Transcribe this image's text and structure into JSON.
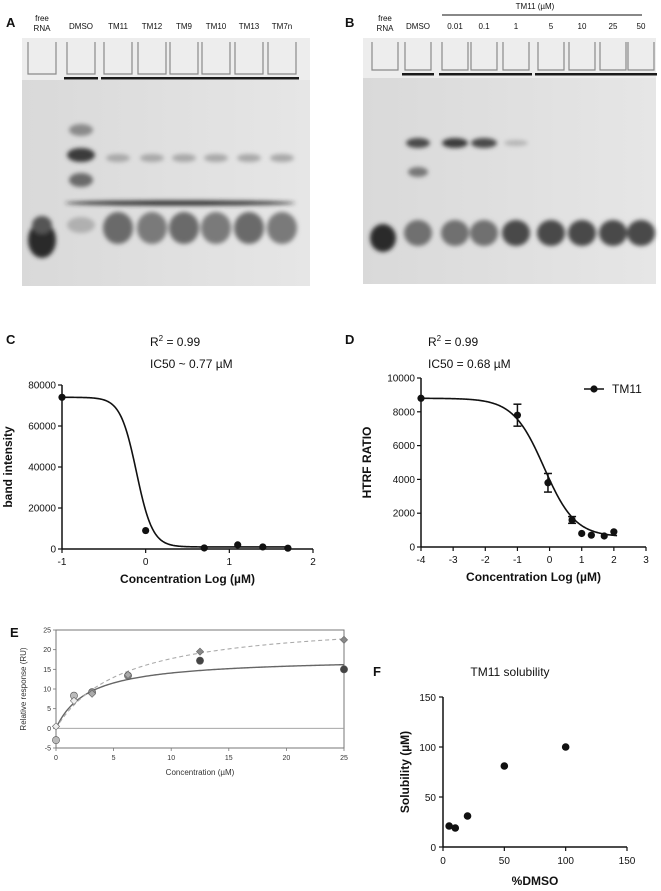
{
  "panels": {
    "A": {
      "letter": "A",
      "lanes": [
        "free RNA",
        "DMSO",
        "TM11",
        "TM12",
        "TM9",
        "TM10",
        "TM13",
        "TM7n"
      ]
    },
    "B": {
      "letter": "B",
      "header": "TM11 (µM)",
      "lanes": [
        "free RNA",
        "DMSO",
        "0.01",
        "0.1",
        "1",
        "5",
        "10",
        "25",
        "50"
      ]
    }
  },
  "chart_data": [
    {
      "panel": "C",
      "type": "scatter",
      "annotation_r2_prefix": "R",
      "annotation_r2_sup": "2",
      "annotation_r2_value": " = 0.99",
      "annotation_ic50": "IC50 ~ 0.77  µM",
      "xlabel": "Concentration Log (µM)",
      "ylabel": "band intensity",
      "xlim": [
        -1,
        2
      ],
      "ylim": [
        0,
        80000
      ],
      "xticks": [
        "-1",
        "0",
        "1",
        "2"
      ],
      "yticks": [
        "0",
        "20000",
        "40000",
        "60000",
        "80000"
      ],
      "points": [
        {
          "x": -1,
          "y": 74000
        },
        {
          "x": 0,
          "y": 9000
        },
        {
          "x": 0.7,
          "y": 500
        },
        {
          "x": 1.1,
          "y": 2000
        },
        {
          "x": 1.4,
          "y": 1000
        },
        {
          "x": 1.7,
          "y": 400
        }
      ],
      "fit": {
        "top": 74000,
        "bottom": 1000,
        "log_ic50": -0.11,
        "hill": 4.5
      }
    },
    {
      "panel": "D",
      "type": "scatter",
      "annotation_r2_prefix": "R",
      "annotation_r2_sup": "2",
      "annotation_r2_value": " = 0.99",
      "annotation_ic50": "IC50 = 0.68  µM",
      "xlabel": "Concentration Log (µM)",
      "ylabel": "HTRF RATIO",
      "legend": "TM11",
      "xlim": [
        -4,
        3
      ],
      "ylim": [
        0,
        10000
      ],
      "xticks": [
        "-4",
        "-3",
        "-2",
        "-1",
        "0",
        "1",
        "2",
        "3"
      ],
      "yticks": [
        "0",
        "2000",
        "4000",
        "6000",
        "8000",
        "10000"
      ],
      "points": [
        {
          "x": -4,
          "y": 8800,
          "err": 0
        },
        {
          "x": -1,
          "y": 7800,
          "err": 650
        },
        {
          "x": -0.05,
          "y": 3800,
          "err": 550
        },
        {
          "x": 0.7,
          "y": 1600,
          "err": 200
        },
        {
          "x": 1.0,
          "y": 800,
          "err": 0
        },
        {
          "x": 1.3,
          "y": 700,
          "err": 0
        },
        {
          "x": 1.7,
          "y": 650,
          "err": 0
        },
        {
          "x": 2.0,
          "y": 900,
          "err": 0
        }
      ],
      "fit": {
        "top": 8800,
        "bottom": 600,
        "log_ic50": -0.17,
        "hill": 0.9
      }
    },
    {
      "panel": "E",
      "type": "scatter",
      "xlabel": "Concentration (µM)",
      "ylabel": "Relative response (RU)",
      "xlim": [
        0,
        25
      ],
      "ylim": [
        -5,
        25
      ],
      "xticks": [
        "0",
        "5",
        "10",
        "15",
        "20",
        "25"
      ],
      "yticks": [
        "-5",
        "0",
        "5",
        "10",
        "15",
        "20",
        "25"
      ],
      "series": [
        {
          "marker": "circle",
          "points": [
            {
              "x": 0,
              "y": -3
            },
            {
              "x": 1.56,
              "y": 8.3
            },
            {
              "x": 3.13,
              "y": 9.2
            },
            {
              "x": 6.25,
              "y": 13.4
            },
            {
              "x": 12.5,
              "y": 17.2
            },
            {
              "x": 25,
              "y": 15
            }
          ],
          "fit": {
            "rmax": 18,
            "kd": 2.8
          }
        },
        {
          "marker": "diamond",
          "points": [
            {
              "x": 0,
              "y": 0.5
            },
            {
              "x": 1.56,
              "y": 7
            },
            {
              "x": 3.13,
              "y": 8.8
            },
            {
              "x": 6.25,
              "y": 13.6
            },
            {
              "x": 12.5,
              "y": 19.5
            },
            {
              "x": 25,
              "y": 22.5
            }
          ],
          "fit": {
            "rmax": 28,
            "kd": 5.8
          }
        }
      ]
    },
    {
      "panel": "F",
      "type": "scatter",
      "title": "TM11 solubility",
      "xlabel": "%DMSO",
      "ylabel": "Solubility (µM)",
      "xlim": [
        0,
        150
      ],
      "ylim": [
        0,
        150
      ],
      "xticks": [
        "0",
        "50",
        "100",
        "150"
      ],
      "yticks": [
        "0",
        "50",
        "100",
        "150"
      ],
      "points": [
        {
          "x": 5,
          "y": 21
        },
        {
          "x": 10,
          "y": 19
        },
        {
          "x": 20,
          "y": 31
        },
        {
          "x": 50,
          "y": 81
        },
        {
          "x": 100,
          "y": 100
        }
      ]
    }
  ]
}
